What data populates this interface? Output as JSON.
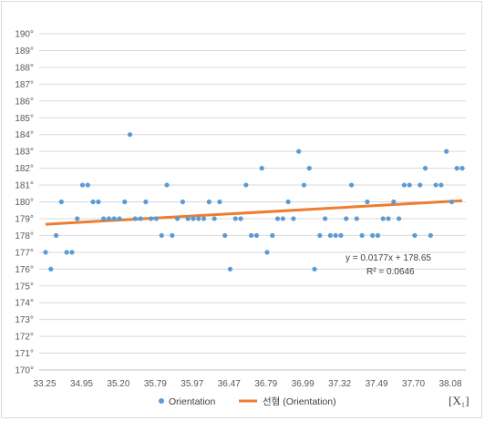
{
  "chart_data": {
    "type": "scatter",
    "x_tick_labels": [
      "33.25",
      "34.95",
      "35.20",
      "35.79",
      "35.97",
      "36.47",
      "36.79",
      "36.99",
      "37.32",
      "37.49",
      "37.70",
      "38.08"
    ],
    "x_unit_label": "[X₁]",
    "y_tick_labels": [
      "170°",
      "171°",
      "172°",
      "173°",
      "174°",
      "175°",
      "176°",
      "177°",
      "178°",
      "179°",
      "180°",
      "181°",
      "182°",
      "183°",
      "184°",
      "185°",
      "186°",
      "187°",
      "188°",
      "189°",
      "190°"
    ],
    "ylim": [
      170,
      190
    ],
    "y_step": 1,
    "y_values_note": "",
    "series": [
      {
        "name": "Orientation",
        "kind": "scatter",
        "color": "#5b9bd5",
        "values": [
          177,
          176,
          178,
          180,
          177,
          177,
          179,
          181,
          181,
          180,
          180,
          179,
          179,
          179,
          179,
          180,
          184,
          179,
          179,
          180,
          179,
          179,
          178,
          181,
          178,
          179,
          180,
          179,
          179,
          179,
          179,
          180,
          179,
          180,
          178,
          176,
          179,
          179,
          181,
          178,
          178,
          182,
          177,
          178,
          179,
          179,
          180,
          179,
          183,
          181,
          182,
          176,
          178,
          179,
          178,
          178,
          178,
          179,
          181,
          179,
          178,
          180,
          178,
          178,
          179,
          179,
          180,
          179,
          181,
          181,
          178,
          181,
          182,
          178,
          181,
          181,
          183,
          180,
          182,
          182
        ]
      },
      {
        "name": "선형 (Orientation)",
        "kind": "trendline",
        "color": "#ed7d31",
        "slope": 0.0177,
        "intercept": 178.65
      }
    ],
    "annotations": {
      "equation": "y = 0.0177x + 178.65",
      "r_squared": "R² = 0.0646"
    },
    "grid": true,
    "legend_position": "bottom"
  }
}
